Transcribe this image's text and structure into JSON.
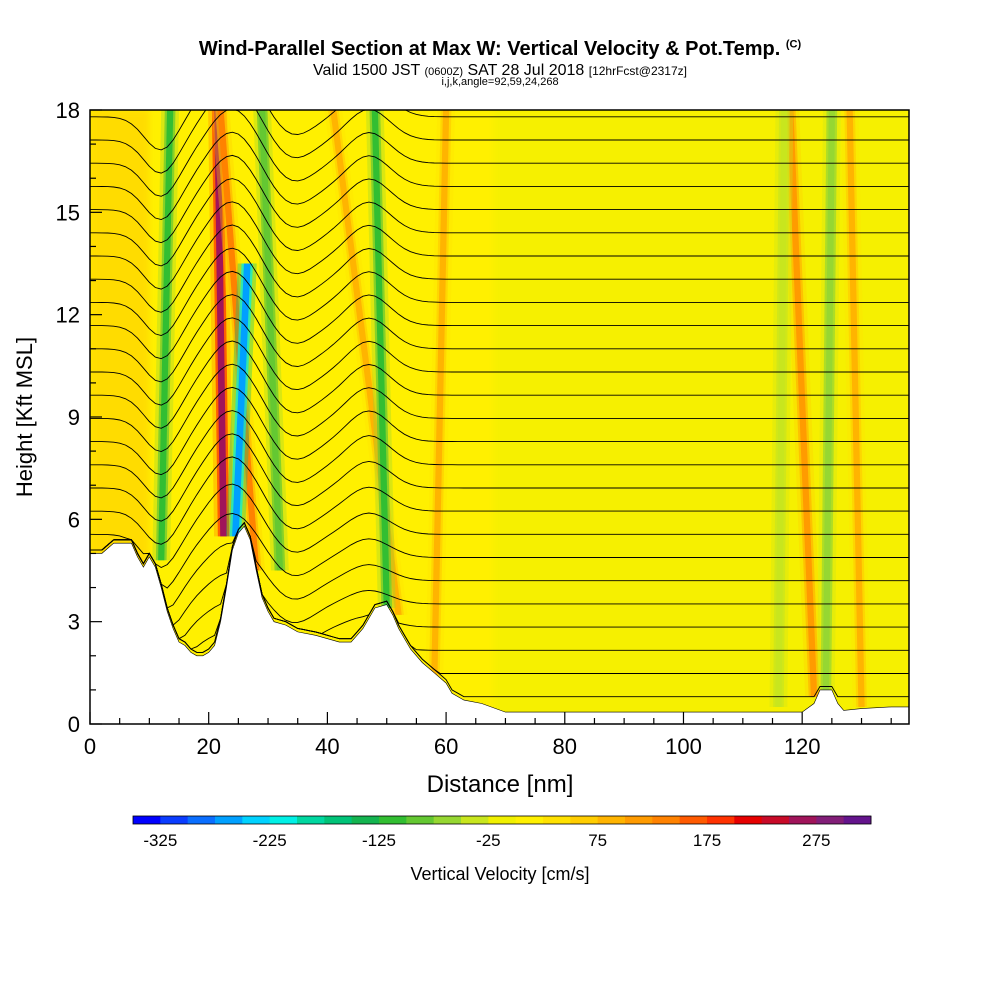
{
  "title": {
    "main": "Wind-Parallel Section at Max W: Vertical Velocity & Pot.Temp.",
    "main_units": "(C)",
    "valid_prefix": "Valid 1500 JST",
    "valid_utc": "(0600Z)",
    "valid_date": "SAT 28 Jul 2018",
    "forecast": "[12hrFcst@2317z]",
    "section_params": "i,j,k,angle=92,59,24,268"
  },
  "chart_data": {
    "type": "heatmap",
    "xlabel": "Distance [nm]",
    "ylabel": "Height [Kft MSL]",
    "xlim": [
      0,
      138
    ],
    "ylim": [
      0,
      18
    ],
    "x_ticks": [
      0,
      20,
      40,
      60,
      80,
      100,
      120
    ],
    "y_ticks": [
      0,
      3,
      6,
      9,
      12,
      15,
      18
    ],
    "colorbar": {
      "label": "Vertical Velocity [cm/s]",
      "min": -350,
      "max": 300,
      "step": 25,
      "tick_values": [
        -325,
        -225,
        -125,
        -25,
        75,
        175,
        275
      ],
      "colors": [
        "#0000ff",
        "#0a3cff",
        "#0a6eff",
        "#00a0ff",
        "#00d2ff",
        "#00f0e6",
        "#00d7a0",
        "#00c378",
        "#14b450",
        "#32be32",
        "#64c832",
        "#96d732",
        "#c8e61e",
        "#f0f000",
        "#fff000",
        "#ffe100",
        "#ffcd00",
        "#ffb400",
        "#ff9b00",
        "#ff8200",
        "#ff5a00",
        "#ff3200",
        "#e60000",
        "#c80a28",
        "#a0145a",
        "#821e78",
        "#64148c"
      ]
    },
    "isentropes_note": "Potential temperature contours (C)",
    "terrain_top_kft": [
      [
        0,
        5.0
      ],
      [
        2,
        5.0
      ],
      [
        4,
        5.3
      ],
      [
        7,
        5.3
      ],
      [
        8,
        4.9
      ],
      [
        9,
        4.6
      ],
      [
        10,
        4.9
      ],
      [
        11,
        4.6
      ],
      [
        12,
        4.0
      ],
      [
        13,
        3.3
      ],
      [
        14,
        2.8
      ],
      [
        15,
        2.4
      ],
      [
        16,
        2.3
      ],
      [
        17,
        2.1
      ],
      [
        18,
        2.0
      ],
      [
        19,
        2.0
      ],
      [
        20,
        2.1
      ],
      [
        21,
        2.3
      ],
      [
        22,
        3.0
      ],
      [
        23,
        4.0
      ],
      [
        24,
        5.1
      ],
      [
        25,
        5.6
      ],
      [
        26,
        5.8
      ],
      [
        27,
        5.4
      ],
      [
        28,
        4.5
      ],
      [
        29,
        3.7
      ],
      [
        30,
        3.3
      ],
      [
        31,
        3.0
      ],
      [
        33,
        2.9
      ],
      [
        35,
        2.7
      ],
      [
        38,
        2.6
      ],
      [
        40,
        2.5
      ],
      [
        42,
        2.4
      ],
      [
        44,
        2.4
      ],
      [
        46,
        2.8
      ],
      [
        48,
        3.4
      ],
      [
        50,
        3.5
      ],
      [
        51,
        3.2
      ],
      [
        52,
        2.8
      ],
      [
        54,
        2.2
      ],
      [
        56,
        1.8
      ],
      [
        58,
        1.5
      ],
      [
        60,
        1.2
      ],
      [
        61,
        0.9
      ],
      [
        63,
        0.7
      ],
      [
        66,
        0.6
      ],
      [
        70,
        0.35
      ],
      [
        80,
        0.35
      ],
      [
        100,
        0.35
      ],
      [
        120,
        0.35
      ],
      [
        122,
        0.6
      ],
      [
        123,
        1.0
      ],
      [
        125,
        1.0
      ],
      [
        126,
        0.6
      ],
      [
        127,
        0.4
      ],
      [
        130,
        0.45
      ],
      [
        135,
        0.5
      ],
      [
        138,
        0.5
      ]
    ],
    "updraft_bands": [
      {
        "x_base": 22.5,
        "x_top": 21.5,
        "z_bottom": 5.5,
        "z_top": 18,
        "value": 250
      },
      {
        "x_base": 28,
        "x_top": 22,
        "z_bottom": 4.5,
        "z_top": 18,
        "value": 125
      },
      {
        "x_base": 52,
        "x_top": 41,
        "z_bottom": 3.2,
        "z_top": 18,
        "value": 75
      },
      {
        "x_base": 58,
        "x_top": 60,
        "z_bottom": 1.2,
        "z_top": 18,
        "value": 75
      },
      {
        "x_base": 122,
        "x_top": 118,
        "z_bottom": 0.8,
        "z_top": 18,
        "value": 100
      },
      {
        "x_base": 130,
        "x_top": 128,
        "z_bottom": 0.5,
        "z_top": 18,
        "value": 75
      }
    ],
    "downdraft_bands": [
      {
        "x_base": 24.5,
        "x_top": 26.5,
        "z_bottom": 5.5,
        "z_top": 13.5,
        "value": -275
      },
      {
        "x_base": 12,
        "x_top": 13.5,
        "z_bottom": 4.8,
        "z_top": 18,
        "value": -125
      },
      {
        "x_base": 32,
        "x_top": 29,
        "z_bottom": 4.5,
        "z_top": 18,
        "value": -100
      },
      {
        "x_base": 50,
        "x_top": 48,
        "z_bottom": 3.4,
        "z_top": 18,
        "value": -125
      },
      {
        "x_base": 116,
        "x_top": 117,
        "z_bottom": 0.5,
        "z_top": 18,
        "value": -50
      },
      {
        "x_base": 124,
        "x_top": 125,
        "z_bottom": 1.0,
        "z_top": 18,
        "value": -75
      }
    ]
  }
}
